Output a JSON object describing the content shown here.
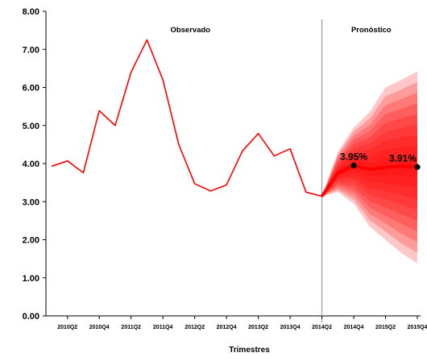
{
  "chart_data": {
    "type": "line",
    "xlabel": "Trimestres",
    "ylabel": "",
    "ylim": [
      0,
      8
    ],
    "yticks": [
      "0.00",
      "1.00",
      "2.00",
      "3.00",
      "4.00",
      "5.00",
      "6.00",
      "7.00",
      "8.00"
    ],
    "ytick_values": [
      0,
      1,
      2,
      3,
      4,
      5,
      6,
      7,
      8
    ],
    "grid": false,
    "legend": "none",
    "line_color": "#ff0000",
    "fan_color": "#ff0000",
    "region_labels": [
      "Observado",
      "Pronóstico"
    ],
    "x_tick_labels": [
      "2010Q2",
      "2010Q4",
      "2011Q2",
      "2011Q4",
      "2012Q2",
      "2012Q4",
      "2013Q2",
      "2013Q4",
      "2014Q2",
      "2014Q4",
      "2015Q2",
      "2015Q4"
    ],
    "observed": {
      "x": [
        "2010Q1",
        "2010Q2",
        "2010Q3",
        "2010Q4",
        "2011Q1",
        "2011Q2",
        "2011Q3",
        "2011Q4",
        "2012Q1",
        "2012Q2",
        "2012Q3",
        "2012Q4",
        "2013Q1",
        "2013Q2",
        "2013Q3",
        "2013Q4",
        "2014Q1",
        "2014Q2"
      ],
      "values": [
        3.93,
        4.07,
        3.76,
        5.39,
        5.0,
        6.4,
        7.25,
        6.2,
        4.5,
        3.47,
        3.28,
        3.44,
        4.33,
        4.79,
        4.2,
        4.39,
        3.25,
        3.14
      ]
    },
    "forecast": {
      "x": [
        "2014Q2",
        "2014Q3",
        "2014Q4",
        "2015Q1",
        "2015Q2",
        "2015Q3",
        "2015Q4"
      ],
      "central": [
        3.14,
        3.75,
        3.95,
        3.85,
        3.9,
        3.93,
        3.91
      ],
      "upper_bounds": [
        3.14,
        4.3,
        4.95,
        5.35,
        6.0,
        6.2,
        6.42
      ],
      "lower_bounds": [
        3.14,
        3.25,
        2.95,
        2.35,
        2.0,
        1.65,
        1.38
      ]
    },
    "annotations": [
      {
        "x": "2014Q4",
        "y": 3.95,
        "text": "3.95%"
      },
      {
        "x": "2015Q4",
        "y": 3.91,
        "text": "3.91%"
      }
    ]
  }
}
